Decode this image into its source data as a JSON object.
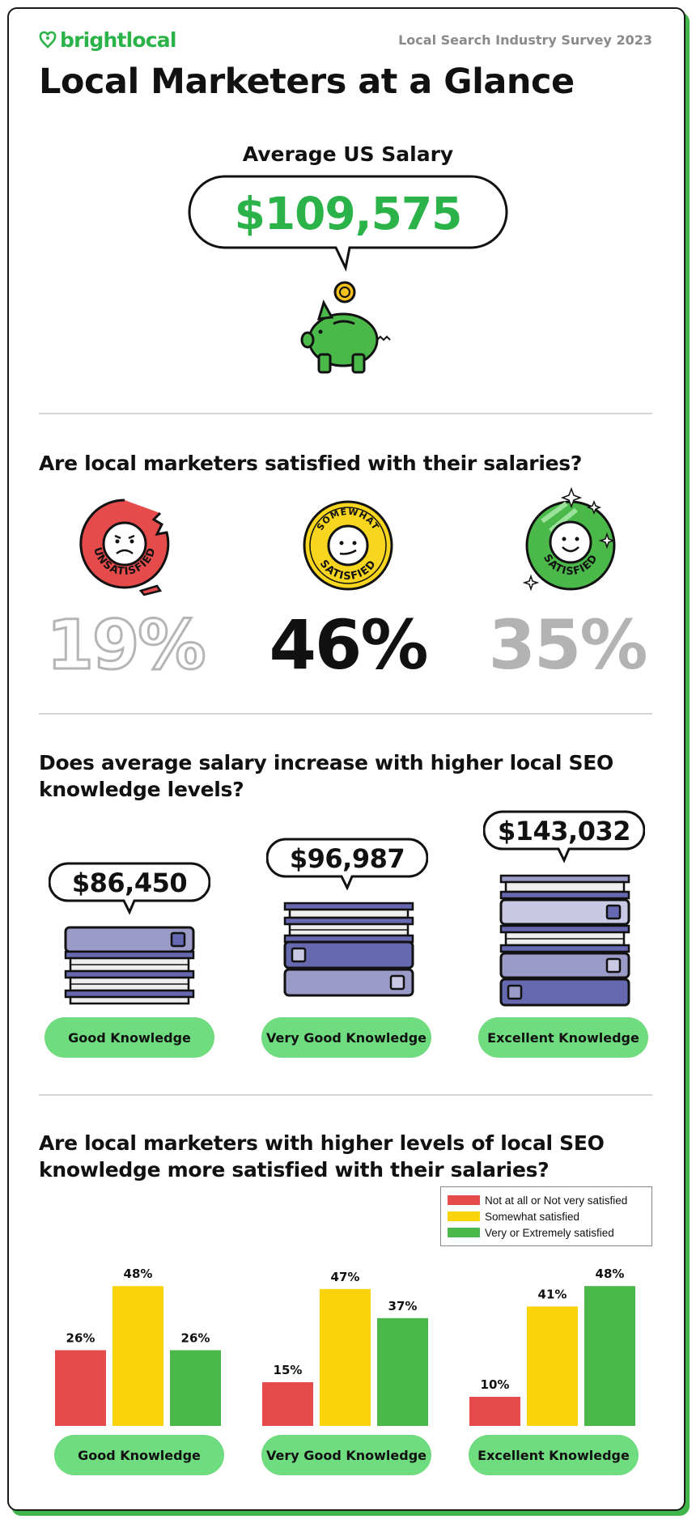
{
  "header": {
    "brand": "brightlocal",
    "survey": "Local Search Industry Survey 2023",
    "title": "Local Marketers at a Glance"
  },
  "salary": {
    "label": "Average US Salary",
    "value": "$109,575"
  },
  "satisfaction": {
    "question": "Are local marketers satisfied with their salaries?",
    "items": [
      {
        "badge": "UNSATISFIED",
        "percent": "19%",
        "color": "#e54b4b"
      },
      {
        "badge_top": "SOMEWHAT",
        "badge": "SATISFIED",
        "percent": "46%",
        "color": "#f8d51e"
      },
      {
        "badge": "SATISFIED",
        "percent": "35%",
        "color": "#4bb84a"
      }
    ]
  },
  "knowledge_salary": {
    "question": "Does average salary increase with higher local SEO knowledge levels?",
    "items": [
      {
        "value": "$86,450",
        "label": "Good Knowledge"
      },
      {
        "value": "$96,987",
        "label": "Very Good Knowledge"
      },
      {
        "value": "$143,032",
        "label": "Excellent Knowledge"
      }
    ]
  },
  "knowledge_satisfaction": {
    "question": "Are local marketers with higher levels of local SEO knowledge more satisfied with their salaries?",
    "legend": [
      {
        "label": "Not at all or Not very satisfied",
        "color": "#e54b4b"
      },
      {
        "label": "Somewhat satisfied",
        "color": "#fbd30a"
      },
      {
        "label": "Very or Extremely satisfied",
        "color": "#4bb84a"
      }
    ],
    "groups": [
      "Good Knowledge",
      "Very Good Knowledge",
      "Excellent Knowledge"
    ]
  },
  "chart_data": {
    "type": "bar",
    "title": "Are local marketers with higher levels of local SEO knowledge more satisfied with their salaries?",
    "categories": [
      "Good Knowledge",
      "Very Good Knowledge",
      "Excellent Knowledge"
    ],
    "series": [
      {
        "name": "Not at all or Not very satisfied",
        "values": [
          26,
          15,
          10
        ],
        "labels": [
          "26%",
          "15%",
          "10%"
        ],
        "color": "#e54b4b"
      },
      {
        "name": "Somewhat satisfied",
        "values": [
          48,
          47,
          41
        ],
        "labels": [
          "48%",
          "47%",
          "41%"
        ],
        "color": "#fbd30a"
      },
      {
        "name": "Very or Extremely satisfied",
        "values": [
          26,
          37,
          48
        ],
        "labels": [
          "26%",
          "37%",
          "48%"
        ],
        "color": "#4bb84a"
      }
    ],
    "ylim": [
      0,
      50
    ],
    "legend_position": "top-right",
    "grid": false
  }
}
